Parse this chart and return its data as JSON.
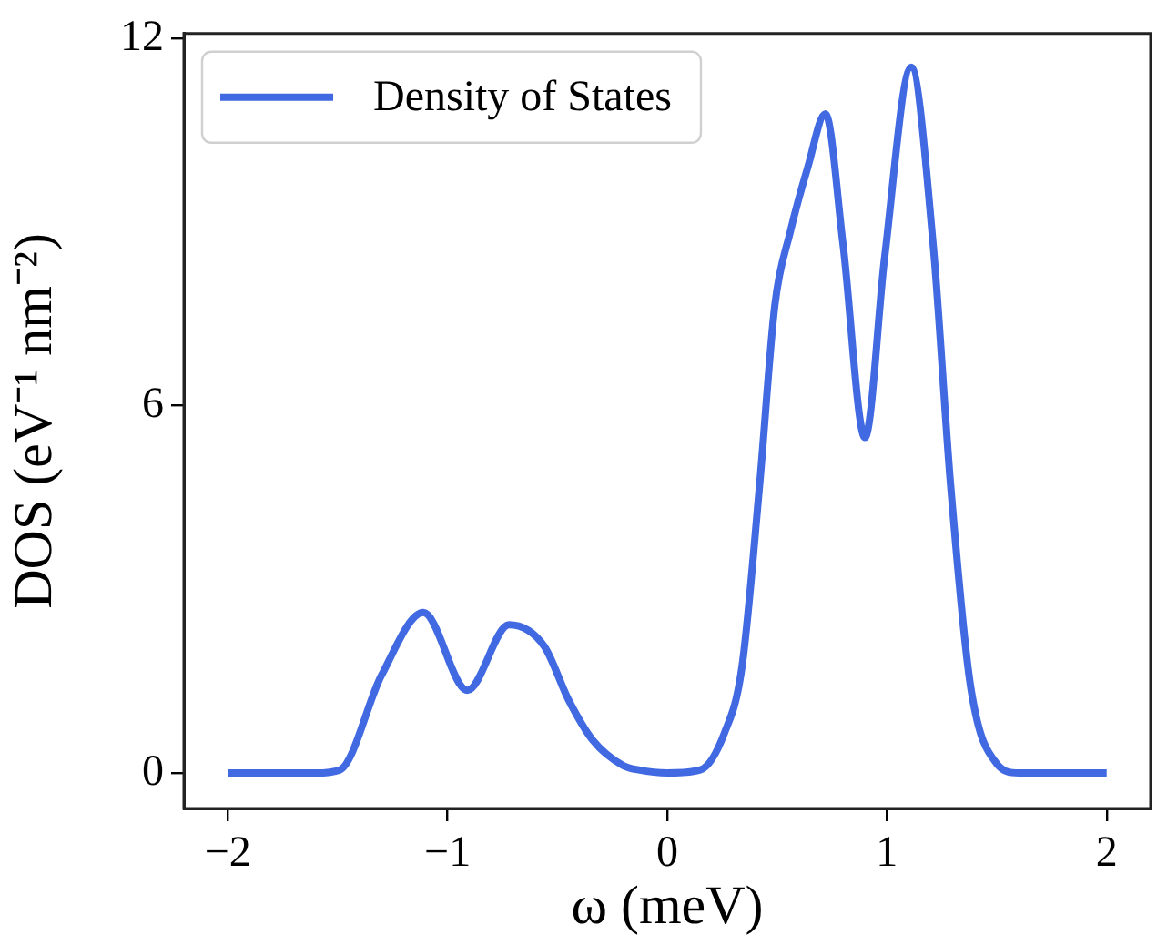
{
  "chart_data": {
    "type": "line",
    "xlabel": "ω (meV)",
    "ylabel": "DOS (eV⁻¹ nm⁻²)",
    "xlim": [
      -2.2,
      2.2
    ],
    "ylim": [
      -0.58,
      12.08
    ],
    "xticks": [
      -2,
      -1,
      0,
      1,
      2
    ],
    "yticks": [
      0,
      6,
      12
    ],
    "grid": false,
    "legend": "top left",
    "marker": "none",
    "line_style": "solid",
    "series": [
      {
        "name": "Density of States",
        "color": "#4169e1",
        "x": [
          -2,
          -1.6,
          -1.49,
          -1.3,
          -1.11,
          -0.91,
          -0.72,
          -0.56,
          -0.45,
          -0.34,
          -0.2,
          -0.13,
          0,
          0.15,
          0.26,
          0.34,
          0.42,
          0.49,
          0.56,
          0.64,
          0.72,
          0.8,
          0.9,
          0.99,
          1.11,
          1.21,
          1.29,
          1.38,
          1.5,
          1.6,
          2
        ],
        "values": [
          0,
          0,
          0.05,
          1.6,
          2.62,
          1.35,
          2.42,
          2.07,
          1.2,
          0.54,
          0.12,
          0.05,
          0,
          0.05,
          0.65,
          1.73,
          4.69,
          7.65,
          8.84,
          9.9,
          10.77,
          8.64,
          5.48,
          8.44,
          11.53,
          8.64,
          4.69,
          1.43,
          0.15,
          0,
          0
        ]
      }
    ]
  }
}
